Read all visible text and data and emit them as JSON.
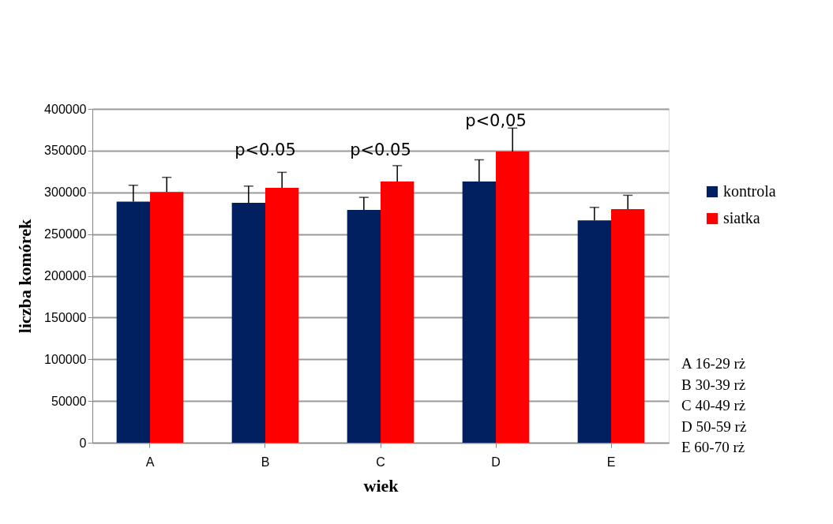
{
  "chart_data": {
    "type": "bar",
    "xlabel": "wiek",
    "ylabel": "liczba komórek",
    "categories": [
      "A",
      "B",
      "C",
      "D",
      "E"
    ],
    "series": [
      {
        "name": "kontrola",
        "color": "#002060",
        "values": [
          289000,
          287500,
          279000,
          313000,
          266500
        ],
        "errors": [
          [
            289000,
            308500
          ],
          [
            287500,
            307500
          ],
          [
            279000,
            294000
          ],
          [
            313000,
            339000
          ],
          [
            266500,
            282000
          ]
        ]
      },
      {
        "name": "siatka",
        "color": "#ff0000",
        "values": [
          300500,
          305500,
          313000,
          349000,
          280000
        ],
        "errors": [
          [
            300500,
            318000
          ],
          [
            305500,
            324000
          ],
          [
            313000,
            332000
          ],
          [
            349000,
            377000
          ],
          [
            280000,
            296500
          ]
        ]
      }
    ],
    "ylim": [
      0,
      400000
    ],
    "yticks": [
      0,
      50000,
      100000,
      150000,
      200000,
      250000,
      300000,
      350000,
      400000
    ],
    "grid": "y",
    "legend": "right",
    "annotations": [
      "p<0.05",
      "p<0.05",
      "p<0,05",
      "A 16-29 rż",
      "B 30-39 rż",
      "C 40-49 rż",
      "D 50-59 rż",
      "E 60-70 rż"
    ]
  }
}
